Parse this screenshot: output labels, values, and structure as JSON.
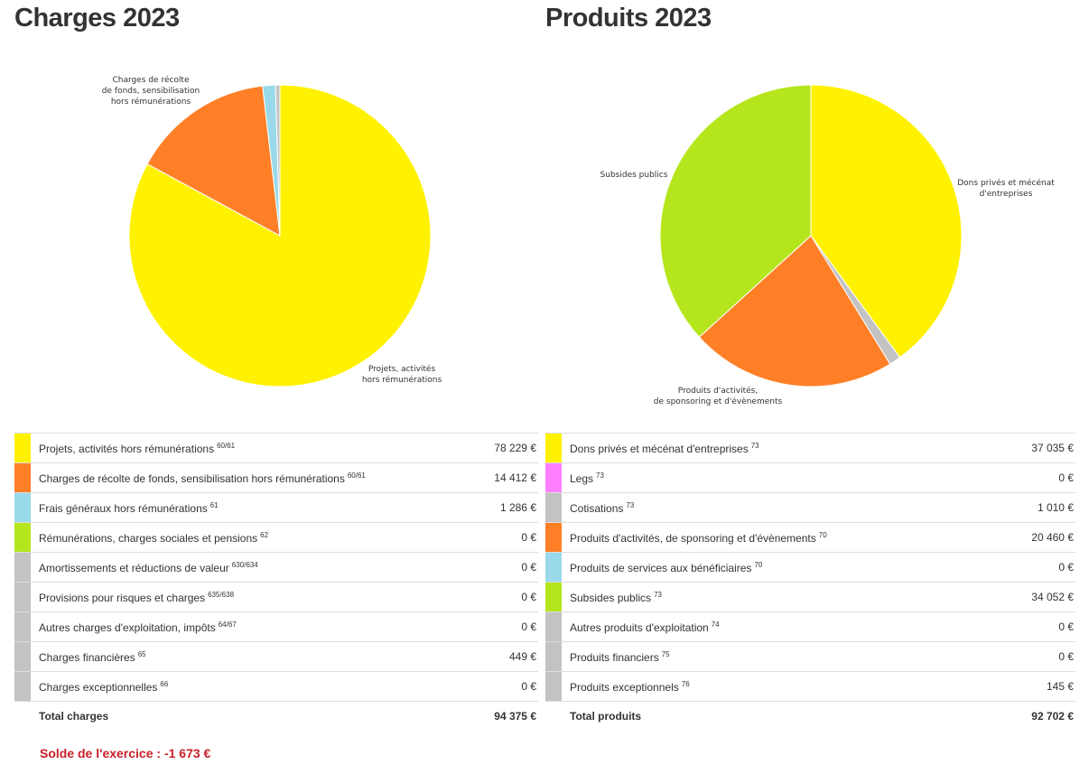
{
  "charges": {
    "title": "Charges 2023",
    "rows": [
      {
        "label": "Projets, activités hors rémunérations",
        "ref": "60/61",
        "value": "78 229 €",
        "color": "#fff200"
      },
      {
        "label": "Charges de récolte de fonds, sensibilisation hors rémunérations",
        "ref": "60/61",
        "value": "14 412 €",
        "color": "#ff7f27"
      },
      {
        "label": "Frais généraux hors rémunérations",
        "ref": "61",
        "value": "1 286 €",
        "color": "#99d9ea"
      },
      {
        "label": "Rémunérations, charges sociales et pensions",
        "ref": "62",
        "value": "0 €",
        "color": "#b5e61d"
      },
      {
        "label": "Amortissements et réductions de valeur",
        "ref": "630/634",
        "value": "0 €",
        "color": "#c3c3c3"
      },
      {
        "label": "Provisions pour risques et charges",
        "ref": "635/638",
        "value": "0 €",
        "color": "#c3c3c3"
      },
      {
        "label": "Autres charges d'exploitation, impôts",
        "ref": "64/67",
        "value": "0 €",
        "color": "#c3c3c3"
      },
      {
        "label": "Charges financières",
        "ref": "65",
        "value": "449 €",
        "color": "#c3c3c3"
      },
      {
        "label": "Charges exceptionnelles",
        "ref": "66",
        "value": "0 €",
        "color": "#c3c3c3"
      }
    ],
    "total_label": "Total charges",
    "total_value": "94 375 €"
  },
  "produits": {
    "title": "Produits 2023",
    "rows": [
      {
        "label": "Dons privés et mécénat d'entreprises",
        "ref": "73",
        "value": "37 035 €",
        "color": "#fff200"
      },
      {
        "label": "Legs",
        "ref": "73",
        "value": "0 €",
        "color": "#ff80ff"
      },
      {
        "label": "Cotisations",
        "ref": "73",
        "value": "1 010 €",
        "color": "#c3c3c3"
      },
      {
        "label": "Produits d'activités, de sponsoring et d'évènements",
        "ref": "70",
        "value": "20 460 €",
        "color": "#ff7f27"
      },
      {
        "label": "Produits de services aux bénéficiaires",
        "ref": "70",
        "value": "0 €",
        "color": "#99d9ea"
      },
      {
        "label": "Subsides publics",
        "ref": "73",
        "value": "34 052 €",
        "color": "#b5e61d"
      },
      {
        "label": "Autres produits d'exploitation",
        "ref": "74",
        "value": "0 €",
        "color": "#c3c3c3"
      },
      {
        "label": "Produits financiers",
        "ref": "75",
        "value": "0 €",
        "color": "#c3c3c3"
      },
      {
        "label": "Produits exceptionnels",
        "ref": "76",
        "value": "145 €",
        "color": "#c3c3c3"
      }
    ],
    "total_label": "Total produits",
    "total_value": "92 702 €"
  },
  "solde": "Solde de l'exercice : -1 673 €",
  "chart_data": [
    {
      "type": "pie",
      "title": "Charges 2023",
      "slices": [
        {
          "label": "Projets, activités\nhors rémunérations",
          "value": 78229,
          "color": "#fff200",
          "show_label": true
        },
        {
          "label": "Charges de récolte\nde fonds, sensibilisation\nhors rémunérations",
          "value": 14412,
          "color": "#ff7f27",
          "show_label": true
        },
        {
          "label": "",
          "value": 1286,
          "color": "#99d9ea",
          "show_label": false
        },
        {
          "label": "",
          "value": 449,
          "color": "#c3c3c3",
          "show_label": false
        }
      ]
    },
    {
      "type": "pie",
      "title": "Produits 2023",
      "slices": [
        {
          "label": "Dons privés et mécénat\nd'entreprises",
          "value": 37035,
          "color": "#fff200",
          "show_label": true
        },
        {
          "label": "",
          "value": 1155,
          "color": "#c3c3c3",
          "show_label": false
        },
        {
          "label": "Produits d'activités,\nde sponsoring et d'évènements",
          "value": 20460,
          "color": "#ff7f27",
          "show_label": true
        },
        {
          "label": "Subsides publics",
          "value": 34052,
          "color": "#b5e61d",
          "show_label": true
        }
      ]
    }
  ]
}
